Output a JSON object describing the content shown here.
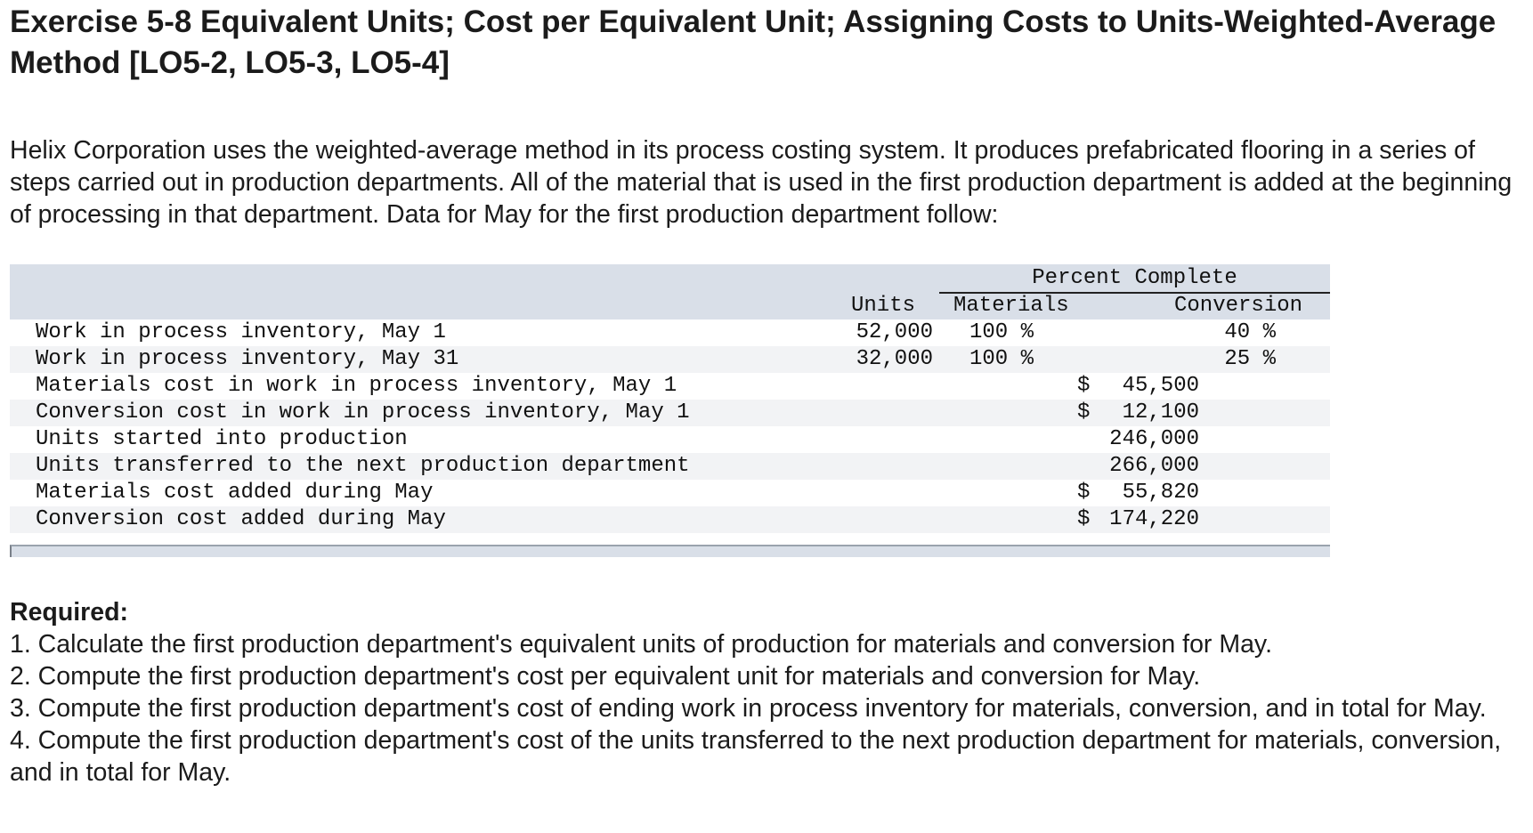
{
  "title": "Exercise 5-8 Equivalent Units; Cost per Equivalent Unit; Assigning Costs to Units-Weighted-Average Method [LO5-2, LO5-3, LO5-4]",
  "intro": "Helix Corporation uses the weighted-average method in its process costing system. It produces prefabricated flooring in a series of steps carried out in production departments. All of the material that is used in the first production department is added at the beginning of processing in that department. Data for May for the first production department follow:",
  "table": {
    "percent_complete_header": "Percent Complete",
    "units_header": "Units",
    "materials_header": "Materials",
    "conversion_header": "Conversion",
    "rows": [
      {
        "label": "Work in process inventory, May 1",
        "units": "52,000",
        "materials": "100 %",
        "conversion": "40 %",
        "dollar": "",
        "amount": ""
      },
      {
        "label": "Work in process inventory, May 31",
        "units": "32,000",
        "materials": "100 %",
        "conversion": "25 %",
        "dollar": "",
        "amount": ""
      },
      {
        "label": "Materials cost in work in process inventory, May 1",
        "units": "",
        "materials": "",
        "conversion": "",
        "dollar": "$",
        "amount": "45,500"
      },
      {
        "label": "Conversion cost in work in process inventory, May 1",
        "units": "",
        "materials": "",
        "conversion": "",
        "dollar": "$",
        "amount": "12,100"
      },
      {
        "label": "Units started into production",
        "units": "",
        "materials": "",
        "conversion": "",
        "dollar": "",
        "amount": "246,000"
      },
      {
        "label": "Units transferred to the next production department",
        "units": "",
        "materials": "",
        "conversion": "",
        "dollar": "",
        "amount": "266,000"
      },
      {
        "label": "Materials cost added during May",
        "units": "",
        "materials": "",
        "conversion": "",
        "dollar": "$",
        "amount": "55,820"
      },
      {
        "label": "Conversion cost added during May",
        "units": "",
        "materials": "",
        "conversion": "",
        "dollar": "$",
        "amount": "174,220"
      }
    ]
  },
  "required": {
    "heading": "Required:",
    "items": [
      "1. Calculate the first production department's equivalent units of production for materials and conversion for May.",
      "2. Compute the first production department's cost per equivalent unit for materials and conversion for May.",
      "3. Compute the first production department's cost of ending work in process inventory for materials, conversion, and in total for May.",
      "4. Compute the first production department's cost of the units transferred to the next production department for materials, conversion, and in total for May."
    ]
  }
}
